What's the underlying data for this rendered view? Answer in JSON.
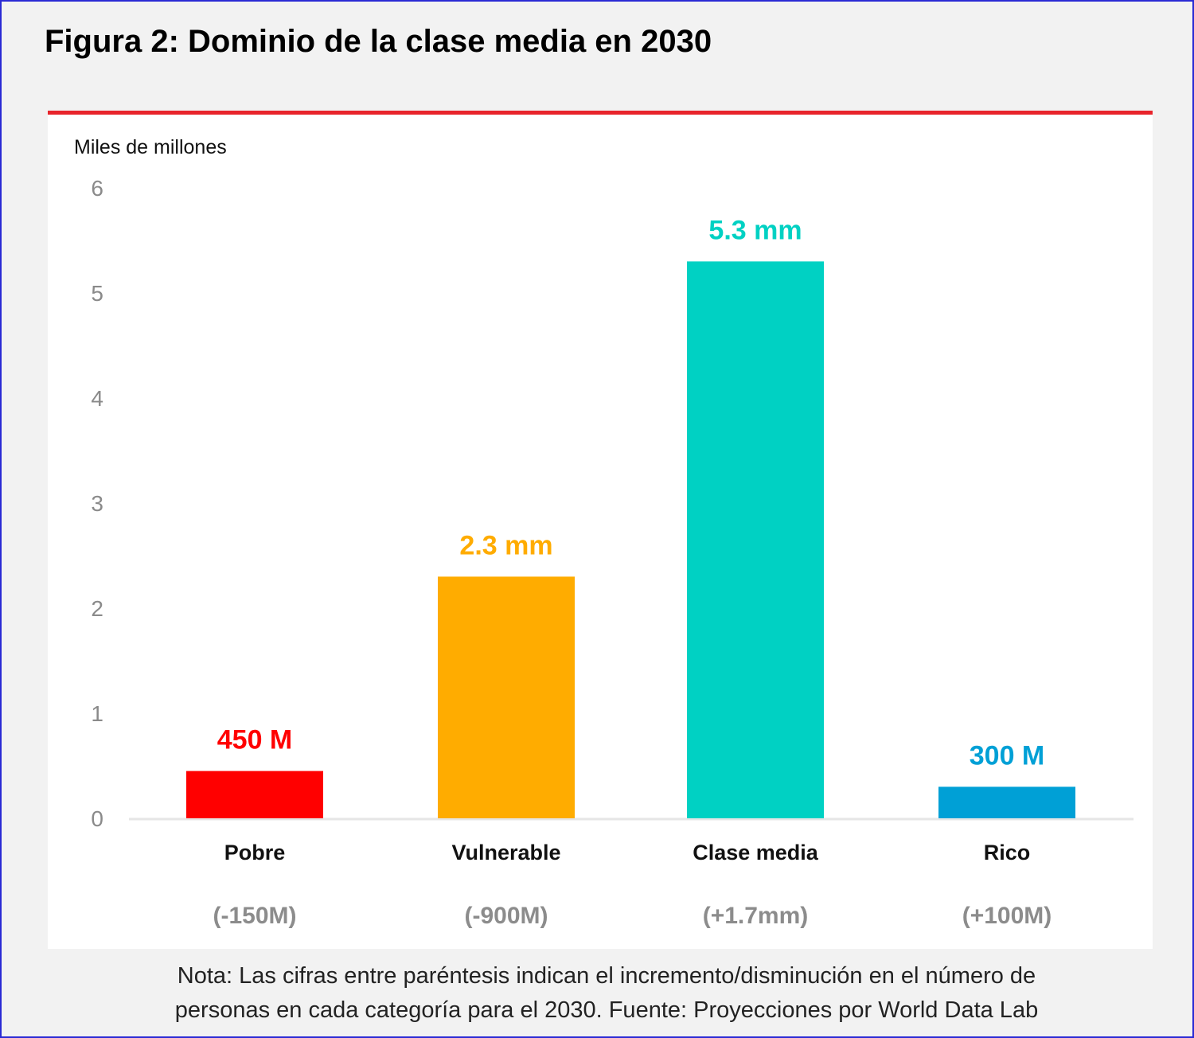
{
  "title": "Figura 2: Dominio de la clase media en 2030",
  "note": {
    "line1": "Nota: Las cifras entre paréntesis indican el incremento/disminución en el número de",
    "line2": "personas en cada categoría para el 2030. Fuente: Proyecciones por World Data Lab"
  },
  "colors": {
    "rule": "#e8242b",
    "border": "#2a2ad4"
  },
  "chart_data": {
    "type": "bar",
    "ylabel": "Miles de millones",
    "ylim": [
      0,
      6
    ],
    "yticks": [
      0,
      1,
      2,
      3,
      4,
      5,
      6
    ],
    "categories": [
      "Pobre",
      "Vulnerable",
      "Clase media",
      "Rico"
    ],
    "values": [
      0.45,
      2.3,
      5.3,
      0.3
    ],
    "data_labels": [
      "450 M",
      "2.3 mm",
      "5.3 mm",
      "300 M"
    ],
    "changes": [
      "(-150M)",
      "(-900M)",
      "(+1.7mm)",
      "(+100M)"
    ],
    "colors": [
      "#ff0000",
      "#ffac00",
      "#00d1c3",
      "#00a0d6"
    ],
    "grid": false,
    "legend": "none"
  }
}
